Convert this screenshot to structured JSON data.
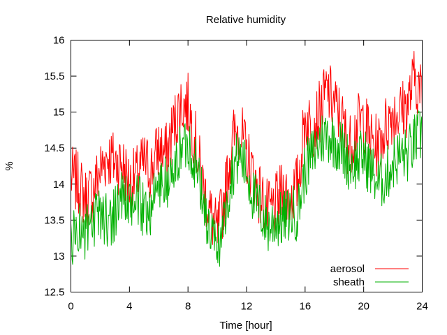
{
  "chart_data": {
    "type": "line",
    "title": "Relative humidity",
    "xlabel": "Time [hour]",
    "ylabel": "%",
    "xlim": [
      0,
      24
    ],
    "ylim": [
      12.5,
      16
    ],
    "x_ticks": [
      "0",
      "4",
      "8",
      "12",
      "16",
      "20",
      "24"
    ],
    "y_ticks": [
      "12.5",
      "13",
      "13.5",
      "14",
      "14.5",
      "15",
      "15.5",
      "16"
    ],
    "grid": false,
    "legend_position": "bottom-right",
    "series": [
      {
        "name": "aerosol",
        "color": "#ff0000",
        "x": [
          0,
          0.5,
          1,
          1.5,
          2,
          2.5,
          3,
          3.5,
          4,
          4.5,
          5,
          5.5,
          6,
          6.5,
          7,
          7.5,
          8,
          8.5,
          9,
          9.5,
          10,
          10.5,
          11,
          11.5,
          12,
          12.5,
          13,
          13.5,
          14,
          14.5,
          15,
          15.5,
          16,
          16.5,
          17,
          17.5,
          18,
          18.5,
          19,
          19.5,
          20,
          20.5,
          21,
          21.5,
          22,
          22.5,
          23,
          23.5,
          24
        ],
        "y": [
          14.1,
          14.0,
          13.8,
          13.9,
          14.2,
          14.4,
          14.3,
          14.3,
          14.0,
          14.1,
          14.3,
          14.2,
          14.5,
          14.4,
          14.8,
          15.1,
          15.1,
          14.6,
          14.0,
          13.6,
          13.3,
          13.8,
          14.6,
          14.8,
          14.4,
          14.1,
          13.8,
          13.6,
          13.7,
          13.9,
          13.8,
          14.0,
          14.9,
          14.8,
          15.0,
          15.3,
          15.1,
          14.9,
          14.5,
          14.8,
          14.9,
          14.6,
          14.5,
          14.8,
          15.0,
          15.0,
          15.1,
          15.5,
          15.2
        ]
      },
      {
        "name": "sheath",
        "color": "#00b000",
        "x": [
          0,
          0.5,
          1,
          1.5,
          2,
          2.5,
          3,
          3.5,
          4,
          4.5,
          5,
          5.5,
          6,
          6.5,
          7,
          7.5,
          8,
          8.5,
          9,
          9.5,
          10,
          10.5,
          11,
          11.5,
          12,
          12.5,
          13,
          13.5,
          14,
          14.5,
          15,
          15.5,
          16,
          16.5,
          17,
          17.5,
          18,
          18.5,
          19,
          19.5,
          20,
          20.5,
          21,
          21.5,
          22,
          22.5,
          23,
          23.5,
          24
        ],
        "y": [
          13.2,
          13.4,
          13.3,
          13.4,
          13.6,
          13.5,
          13.6,
          13.9,
          13.6,
          13.8,
          13.6,
          13.7,
          14.0,
          14.0,
          14.1,
          14.5,
          14.6,
          14.3,
          13.8,
          13.3,
          13.1,
          13.5,
          14.2,
          14.4,
          14.2,
          13.8,
          13.6,
          13.4,
          13.5,
          13.5,
          13.6,
          13.6,
          14.2,
          14.4,
          14.6,
          14.7,
          14.6,
          14.5,
          14.3,
          14.3,
          14.4,
          14.2,
          14.0,
          14.1,
          14.3,
          14.4,
          14.4,
          14.6,
          14.7
        ]
      }
    ]
  }
}
